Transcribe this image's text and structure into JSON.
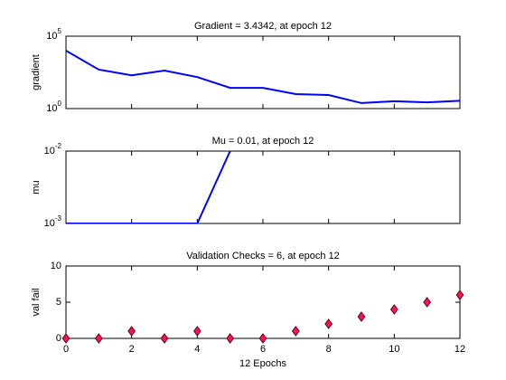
{
  "chart_data": [
    {
      "type": "line",
      "title": "Gradient = 3.4342, at epoch 12",
      "ylabel": "gradient",
      "x": [
        0,
        1,
        2,
        3,
        4,
        5,
        6,
        7,
        8,
        9,
        10,
        11,
        12
      ],
      "values": [
        10000,
        490,
        200,
        420,
        150,
        27,
        27,
        10,
        8.7,
        2.4,
        3.2,
        2.7,
        3.4342
      ],
      "color": "#0000ff",
      "log": true,
      "xlim": [
        0,
        12
      ],
      "ylim": [
        1,
        100000
      ],
      "yticks": [
        {
          "value": 1,
          "label": "10^0"
        },
        {
          "value": 100000,
          "label": "10^5"
        }
      ]
    },
    {
      "type": "line",
      "title": "Mu = 0.01, at epoch 12",
      "ylabel": "mu",
      "x": [
        0,
        1,
        2,
        3,
        4,
        5,
        6,
        7,
        8,
        9,
        10,
        11,
        12
      ],
      "values": [
        0.001,
        0.001,
        0.001,
        0.001,
        0.001,
        0.01,
        null,
        null,
        null,
        null,
        null,
        null,
        null
      ],
      "color": "#0000ff",
      "log": true,
      "xlim": [
        0,
        12
      ],
      "ylim": [
        0.001,
        0.01
      ],
      "yticks": [
        {
          "value": 0.001,
          "label": "10^-3"
        },
        {
          "value": 0.01,
          "label": "10^-2"
        }
      ]
    },
    {
      "type": "scatter",
      "title": "Validation Checks = 6, at epoch 12",
      "ylabel": "val fail",
      "xlabel": "12 Epochs",
      "x": [
        0,
        1,
        2,
        3,
        4,
        5,
        6,
        7,
        8,
        9,
        10,
        11,
        12
      ],
      "values": [
        0,
        0,
        1,
        0,
        1,
        0,
        0,
        1,
        2,
        3,
        4,
        5,
        6
      ],
      "color": "#ff1050",
      "log": false,
      "xlim": [
        0,
        12
      ],
      "ylim": [
        0,
        10
      ],
      "yticks": [
        0,
        5,
        10
      ],
      "xticks": [
        0,
        2,
        4,
        6,
        8,
        10,
        12
      ]
    }
  ]
}
